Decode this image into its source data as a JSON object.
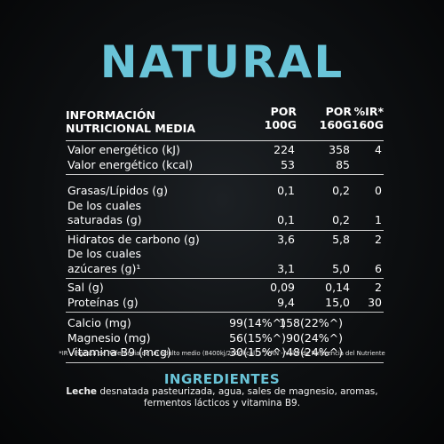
{
  "title": "NATURAL",
  "table": {
    "header": {
      "label_line1": "INFORMACIÓN",
      "label_line2": "NUTRICIONAL MEDIA",
      "col1_line1": "POR",
      "col1_line2": "100G",
      "col2_line1": "POR",
      "col2_line2": "160G",
      "col3_line1": "%IR*",
      "col3_line2": "160G"
    },
    "energy": [
      {
        "label": "Valor energético (kJ)",
        "v1": "224",
        "v2": "358",
        "v3": "4"
      },
      {
        "label": "Valor energético (kcal)",
        "v1": "53",
        "v2": "85",
        "v3": ""
      }
    ],
    "fats": [
      {
        "label": "Grasas/Lípidos (g)",
        "v1": "0,1",
        "v2": "0,2",
        "v3": "0"
      },
      {
        "label": "De los cuales",
        "v1": "",
        "v2": "",
        "v3": ""
      },
      {
        "label": "saturadas (g)",
        "v1": "0,1",
        "v2": "0,2",
        "v3": "1"
      }
    ],
    "carbs": [
      {
        "label": "Hidratos de carbono (g)",
        "v1": "3,6",
        "v2": "5,8",
        "v3": "2"
      },
      {
        "label": "De los cuales",
        "v1": "",
        "v2": "",
        "v3": ""
      },
      {
        "label": "azúcares (g)¹",
        "v1": "3,1",
        "v2": "5,0",
        "v3": "6"
      }
    ],
    "salt_protein": [
      {
        "label": "Sal (g)",
        "v1": "0,09",
        "v2": "0,14",
        "v3": "2"
      },
      {
        "label": "Proteínas (g)",
        "v1": "9,4",
        "v2": "15,0",
        "v3": "30"
      }
    ],
    "minerals": [
      {
        "label": "Calcio (mg)",
        "v1": "99(14%^)",
        "v2": "158(22%^)"
      },
      {
        "label": "Magnesio (mg)",
        "v1": "56(15%^)",
        "v2": "90(24%^)"
      },
      {
        "label": "Vitamina B9 (mcg)",
        "v1": "30(15%^)",
        "v2": "48(24%^)"
      }
    ]
  },
  "footnote": "*IR - Ingesta de Referencia de un adulto medio (8400kj/2000kcal). ^VRN - Valor de Referencia del Nutriente",
  "ingredients": {
    "title": "INGREDIENTES",
    "first_word": "Leche",
    "rest": " desnatada pasteurizada, agua, sales de magnesio, aromas, fermentos lácticos y vitamina B9."
  }
}
